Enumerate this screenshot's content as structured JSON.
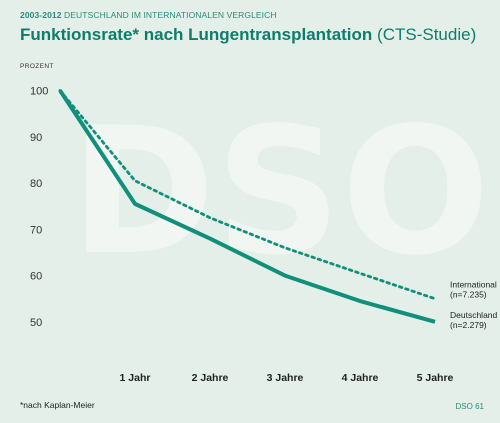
{
  "header": {
    "years": "2003-2012",
    "subtitle": "DEUTSCHLAND IM INTERNATIONALEN VERGLEICH",
    "title_bold": "Funktionsrate* nach Lungentransplantation",
    "title_light": "(CTS-Studie)"
  },
  "footnote": "*nach Kaplan-Meier",
  "source": "DSO 61",
  "watermark": "DSO",
  "colors": {
    "background": "#e4efe9",
    "deutschland": "#10907a",
    "international": "#10907a",
    "watermark": "#f2f6f3"
  },
  "chart_data": {
    "type": "line",
    "ylabel": "PROZENT",
    "ylim": [
      45,
      104
    ],
    "yticks": [
      50,
      60,
      70,
      80,
      90,
      100
    ],
    "x": [
      0,
      1,
      2,
      3,
      4,
      5
    ],
    "xtick_labels": [
      "",
      "1 Jahr",
      "2 Jahre",
      "3 Jahre",
      "4 Jahre",
      "5 Jahre"
    ],
    "grid": false,
    "series": [
      {
        "name": "International",
        "sublabel": "(n=7.235)",
        "style": "dotted",
        "values": [
          100,
          80.5,
          72.5,
          66,
          60.5,
          55
        ]
      },
      {
        "name": "Deutschland",
        "sublabel": "(n=2.279)",
        "style": "solid",
        "values": [
          100,
          75.5,
          68,
          60,
          54.5,
          50
        ]
      }
    ]
  }
}
